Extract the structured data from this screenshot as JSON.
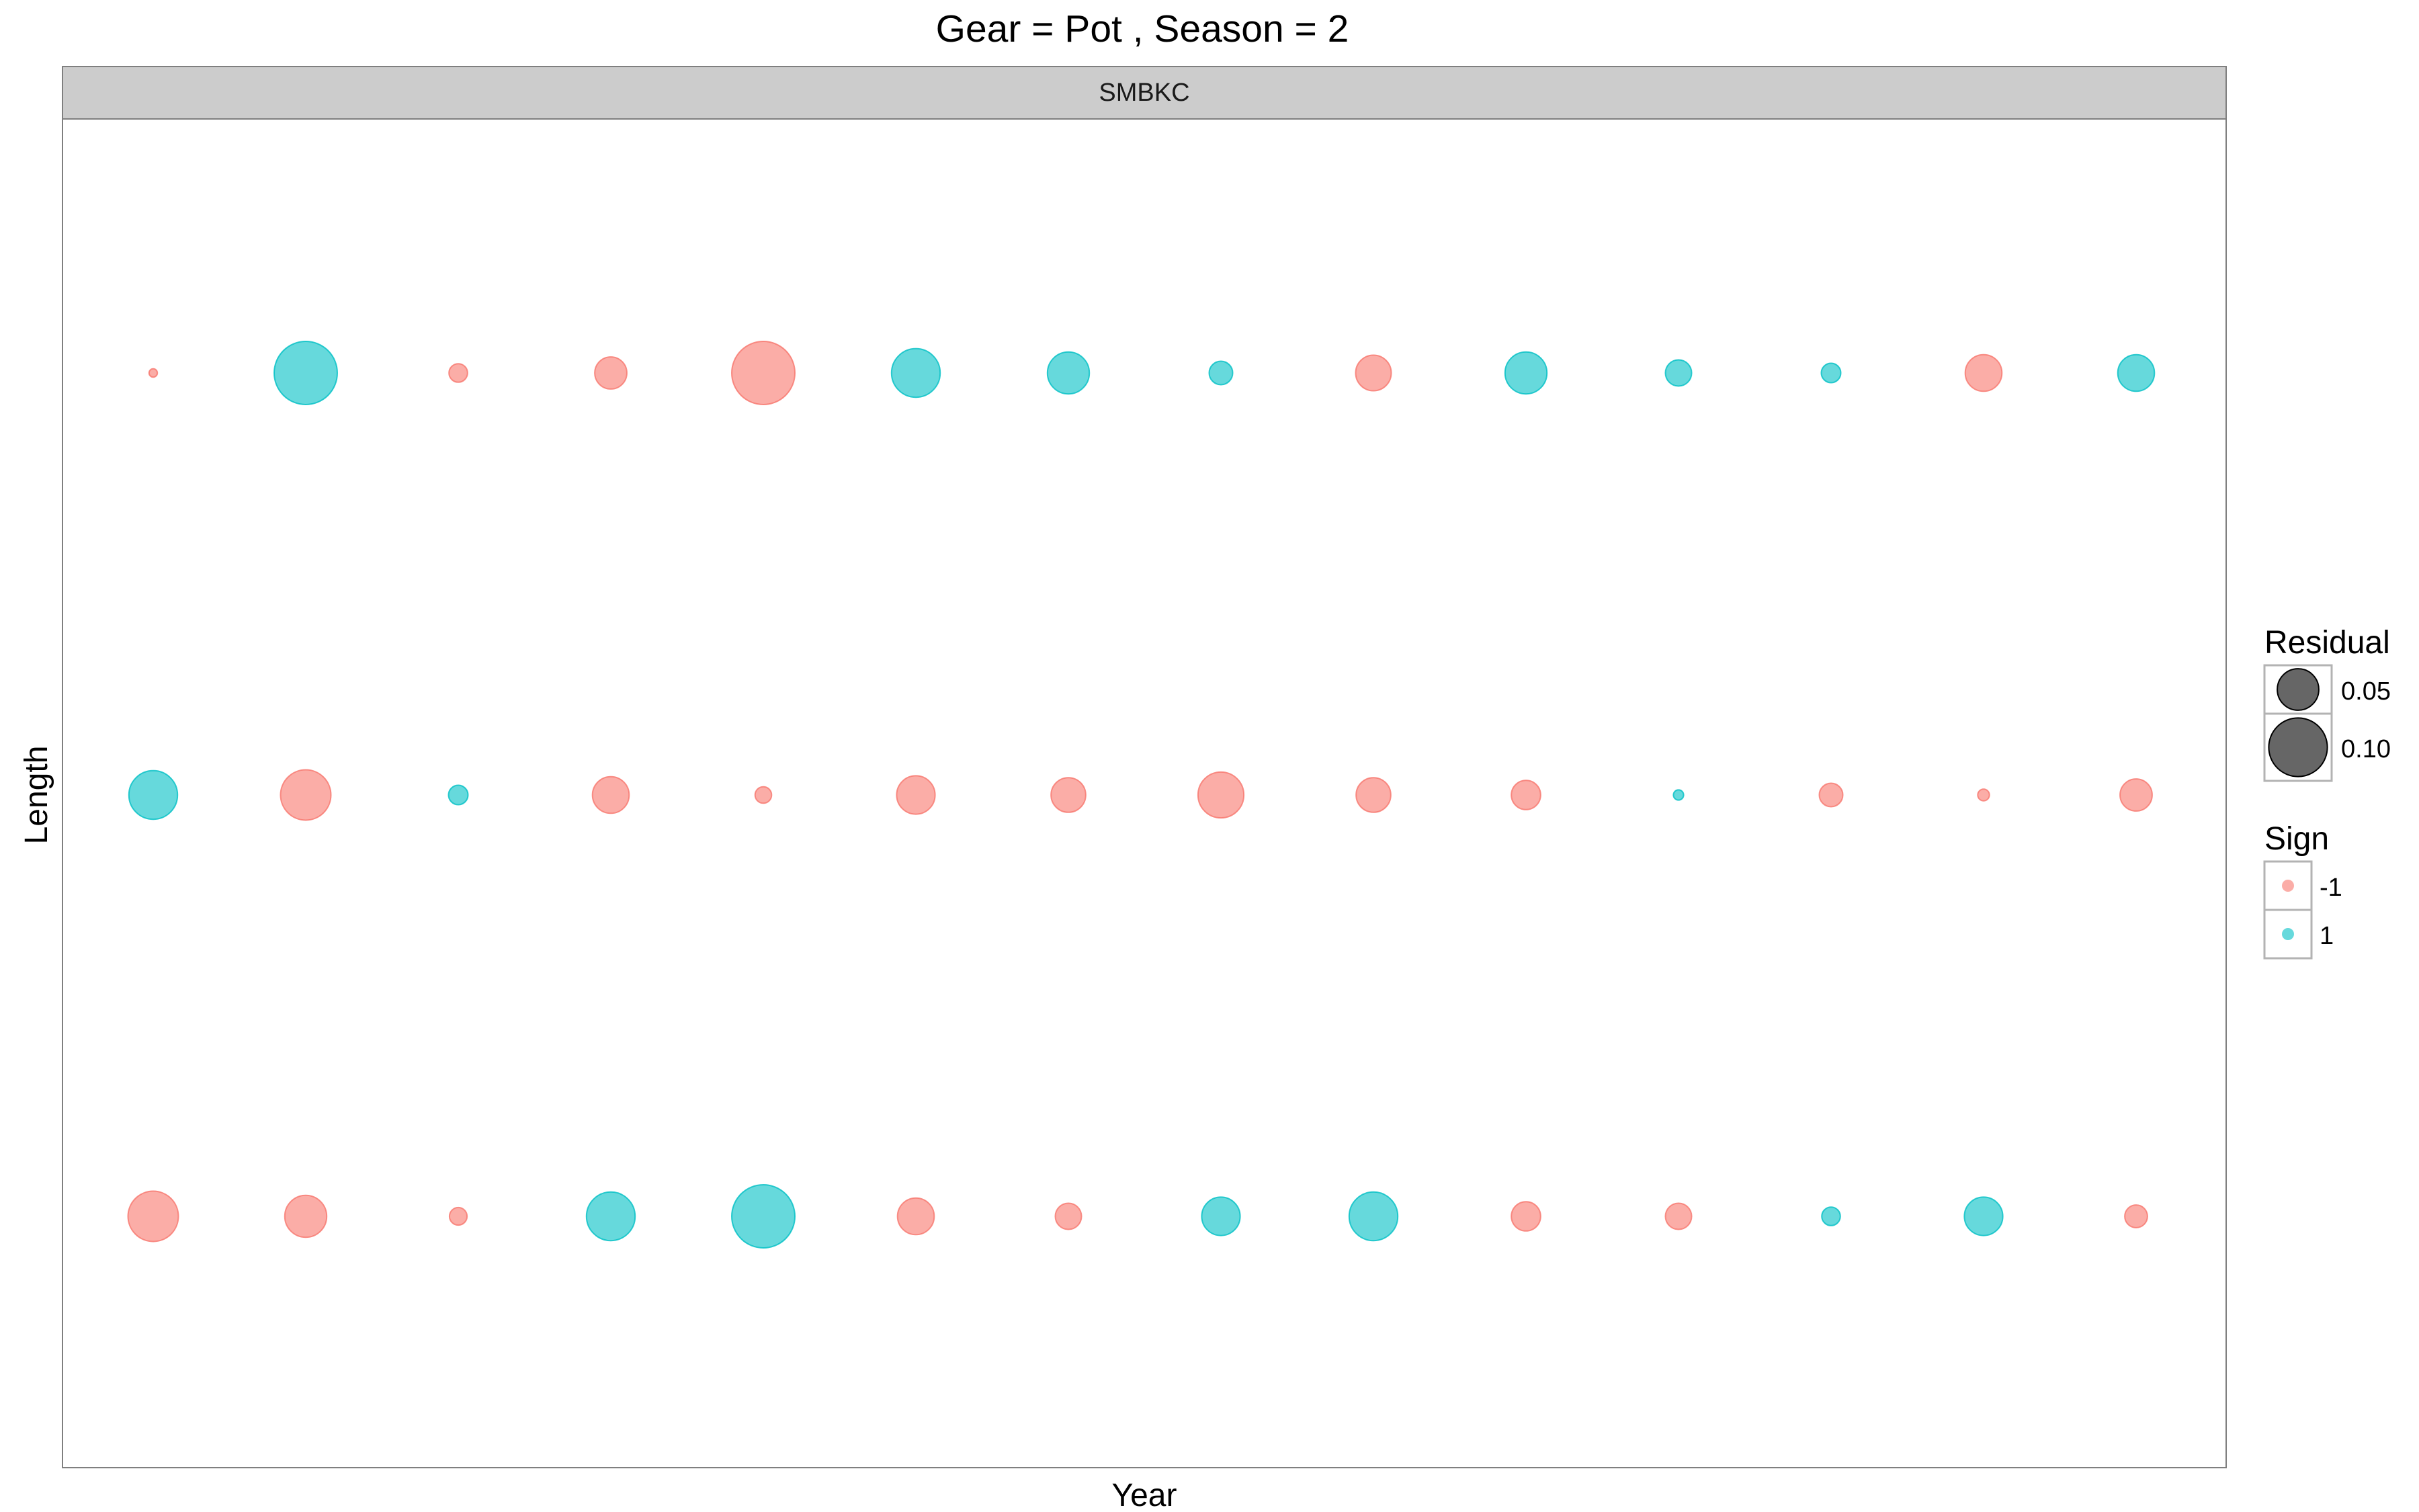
{
  "chart_data": {
    "type": "scatter",
    "title": "Gear = Pot , Season = 2",
    "facet_label": "SMBKC",
    "xlabel": "Year",
    "ylabel": "Length",
    "x_ticks_visible": false,
    "y_ticks_visible": false,
    "grid": false,
    "legend_position": "right",
    "x_categories": [
      1,
      2,
      3,
      4,
      5,
      6,
      7,
      8,
      9,
      10,
      11,
      12,
      13,
      14
    ],
    "length_bins": [
      1,
      2,
      3
    ],
    "size_legend": {
      "title": "Residual",
      "entries": [
        {
          "label": "0.05",
          "value": 0.05
        },
        {
          "label": "0.10",
          "value": 0.1
        }
      ]
    },
    "color_legend": {
      "title": "Sign",
      "entries": [
        {
          "label": "-1",
          "value": -1,
          "color": "#F8766D"
        },
        {
          "label": "1",
          "value": 1,
          "color": "#00BFC4"
        }
      ]
    },
    "series": [
      {
        "length_bin": 3,
        "residual": [
          0.002,
          0.116,
          0.01,
          0.03,
          0.116,
          0.069,
          0.051,
          0.016,
          0.037,
          0.051,
          0.02,
          0.011,
          0.039,
          0.039
        ],
        "sign": [
          -1,
          1,
          -1,
          -1,
          -1,
          1,
          1,
          1,
          -1,
          1,
          1,
          1,
          -1,
          1
        ]
      },
      {
        "length_bin": 2,
        "residual": [
          0.069,
          0.074,
          0.011,
          0.039,
          0.008,
          0.043,
          0.035,
          0.061,
          0.035,
          0.025,
          0.003,
          0.016,
          0.004,
          0.03
        ],
        "sign": [
          1,
          -1,
          1,
          -1,
          -1,
          -1,
          -1,
          -1,
          -1,
          -1,
          1,
          -1,
          -1,
          -1
        ]
      },
      {
        "length_bin": 1,
        "residual": [
          0.074,
          0.051,
          0.009,
          0.069,
          0.116,
          0.039,
          0.02,
          0.043,
          0.069,
          0.025,
          0.02,
          0.01,
          0.043,
          0.015
        ],
        "sign": [
          -1,
          -1,
          -1,
          1,
          1,
          -1,
          -1,
          1,
          1,
          -1,
          -1,
          1,
          1,
          -1
        ]
      }
    ]
  },
  "colors": {
    "negative": "#F8766D",
    "positive": "#00BFC4",
    "strip_fill": "#cccccc",
    "panel_border": "#7f7f7f",
    "size_key_fill": "#333333"
  }
}
